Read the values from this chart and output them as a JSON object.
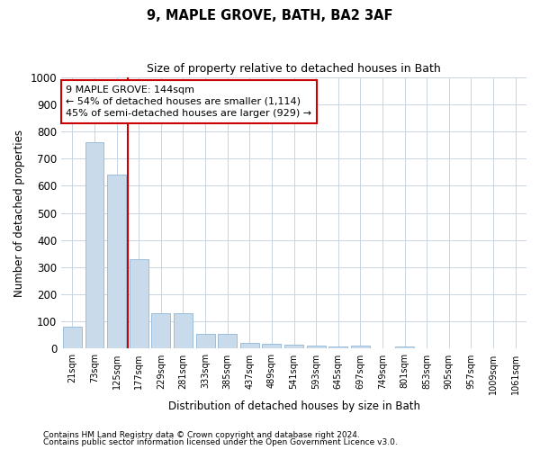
{
  "title1": "9, MAPLE GROVE, BATH, BA2 3AF",
  "title2": "Size of property relative to detached houses in Bath",
  "xlabel": "Distribution of detached houses by size in Bath",
  "ylabel": "Number of detached properties",
  "bin_labels": [
    "21sqm",
    "73sqm",
    "125sqm",
    "177sqm",
    "229sqm",
    "281sqm",
    "333sqm",
    "385sqm",
    "437sqm",
    "489sqm",
    "541sqm",
    "593sqm",
    "645sqm",
    "697sqm",
    "749sqm",
    "801sqm",
    "853sqm",
    "905sqm",
    "957sqm",
    "1009sqm",
    "1061sqm"
  ],
  "bar_values": [
    80,
    760,
    640,
    330,
    130,
    130,
    55,
    55,
    22,
    18,
    15,
    10,
    8,
    10,
    0,
    8,
    0,
    0,
    0,
    0,
    0
  ],
  "bar_color": "#c9daea",
  "bar_edge_color": "#8fb8d8",
  "vline_x": 2.5,
  "vline_color": "#cc0000",
  "annotation_text": "9 MAPLE GROVE: 144sqm\n← 54% of detached houses are smaller (1,114)\n45% of semi-detached houses are larger (929) →",
  "annotation_box_color": "#ffffff",
  "annotation_box_edge": "#cc0000",
  "ylim": [
    0,
    1000
  ],
  "yticks": [
    0,
    100,
    200,
    300,
    400,
    500,
    600,
    700,
    800,
    900,
    1000
  ],
  "background_color": "#ffffff",
  "grid_color": "#c8d4e0",
  "footnote1": "Contains HM Land Registry data © Crown copyright and database right 2024.",
  "footnote2": "Contains public sector information licensed under the Open Government Licence v3.0."
}
